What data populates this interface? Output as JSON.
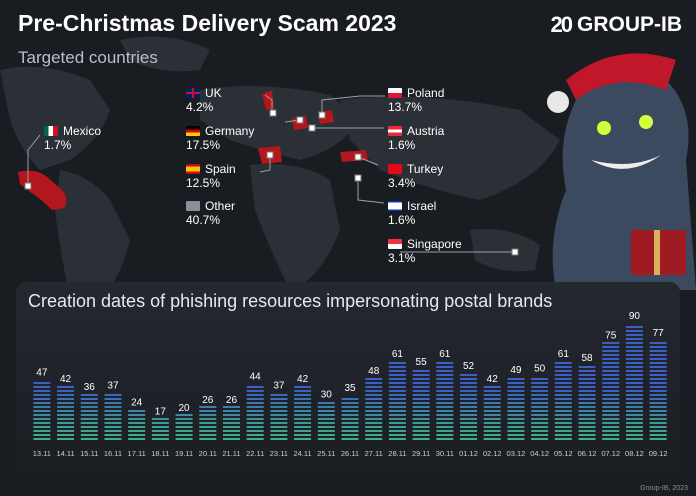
{
  "header": {
    "title": "Pre-Christmas Delivery Scam 2023",
    "subtitle": "Targeted countries",
    "logo_mark": "20",
    "logo_text": "GROUP-IB"
  },
  "countries": [
    {
      "name": "UK",
      "pct": "4.2%"
    },
    {
      "name": "Germany",
      "pct": "17.5%"
    },
    {
      "name": "Spain",
      "pct": "12.5%"
    },
    {
      "name": "Other",
      "pct": "40.7%"
    },
    {
      "name": "Mexico",
      "pct": "1.7%"
    },
    {
      "name": "Poland",
      "pct": "13.7%"
    },
    {
      "name": "Austria",
      "pct": "1.6%"
    },
    {
      "name": "Turkey",
      "pct": "3.4%"
    },
    {
      "name": "Israel",
      "pct": "1.6%"
    },
    {
      "name": "Singapore",
      "pct": "3.1%"
    }
  ],
  "colors": {
    "bar_top": "#3b5fc4",
    "bar_bottom": "#3fb97a",
    "map_highlight": "#b3161c"
  },
  "footer": {
    "copyright": "Group-IB, 2023"
  },
  "chart_data": {
    "type": "bar",
    "title": "Creation dates of phishing resources impersonating postal brands",
    "categories": [
      "13.11",
      "14.11",
      "15.11",
      "16.11",
      "17.11",
      "18.11",
      "19.11",
      "20.11",
      "21.11",
      "22.11",
      "23.11",
      "24.11",
      "25.11",
      "26.11",
      "27.11",
      "28.11",
      "29.11",
      "30.11",
      "01.12",
      "02.12",
      "03.12",
      "04.12",
      "05.12",
      "06.12",
      "07.12",
      "08.12",
      "09.12"
    ],
    "values": [
      47,
      42,
      36,
      37,
      24,
      17,
      20,
      26,
      26,
      44,
      37,
      42,
      30,
      35,
      48,
      61,
      55,
      61,
      52,
      42,
      49,
      50,
      61,
      58,
      75,
      90,
      77
    ],
    "ylim": [
      0,
      90
    ],
    "grid": false
  }
}
